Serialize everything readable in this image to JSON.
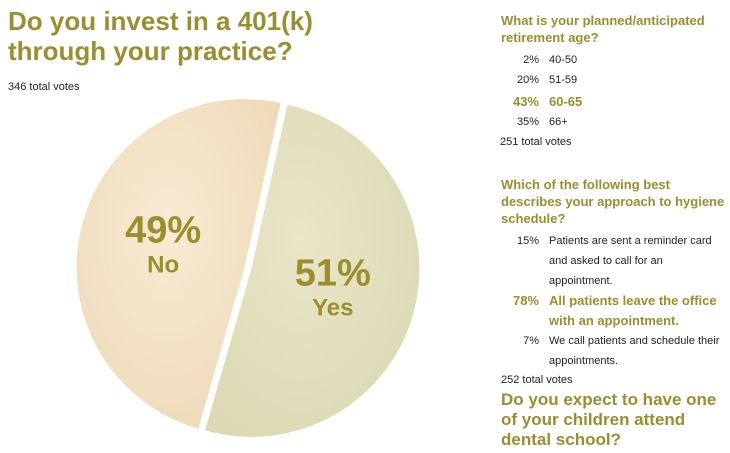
{
  "main_question": {
    "title": "Do you invest in a 401(k) through your practice?",
    "total_votes": "346 total votes"
  },
  "chart_data": {
    "type": "pie",
    "title": "Do you invest in a 401(k) through your practice?",
    "slices": [
      {
        "label": "No",
        "value": 49,
        "pct_label": "49%",
        "color": "#f3e3c6"
      },
      {
        "label": "Yes",
        "value": 51,
        "pct_label": "51%",
        "color": "#e3e0c0"
      }
    ],
    "label_color": "#9a8e2e"
  },
  "retirement_poll": {
    "question": "What is your planned/anticipated retirement age?",
    "options": [
      {
        "pct": "2%",
        "label": "40-50",
        "highlight": false
      },
      {
        "pct": "20%",
        "label": "51-59",
        "highlight": false
      },
      {
        "pct": "43%",
        "label": "60-65",
        "highlight": true
      },
      {
        "pct": "35%",
        "label": "66+",
        "highlight": false
      }
    ],
    "total_votes": "251 total votes"
  },
  "hygiene_poll": {
    "question": "Which of the following best describes your approach to hygiene schedule?",
    "options": [
      {
        "pct": "15%",
        "label": "Patients are sent a reminder card and asked to call for an appointment.",
        "highlight": false
      },
      {
        "pct": "78%",
        "label": "All patients leave the office with an appointment.",
        "highlight": true
      },
      {
        "pct": "7%",
        "label": "We call patients and schedule their appointments.",
        "highlight": false
      }
    ],
    "total_votes": "252 total votes"
  },
  "children_poll": {
    "question": "Do you expect to have one of your children attend dental school?"
  },
  "colors": {
    "accent": "#9a8e2e",
    "pie_no": "#f3e3c6",
    "pie_yes": "#e3e0c0"
  }
}
